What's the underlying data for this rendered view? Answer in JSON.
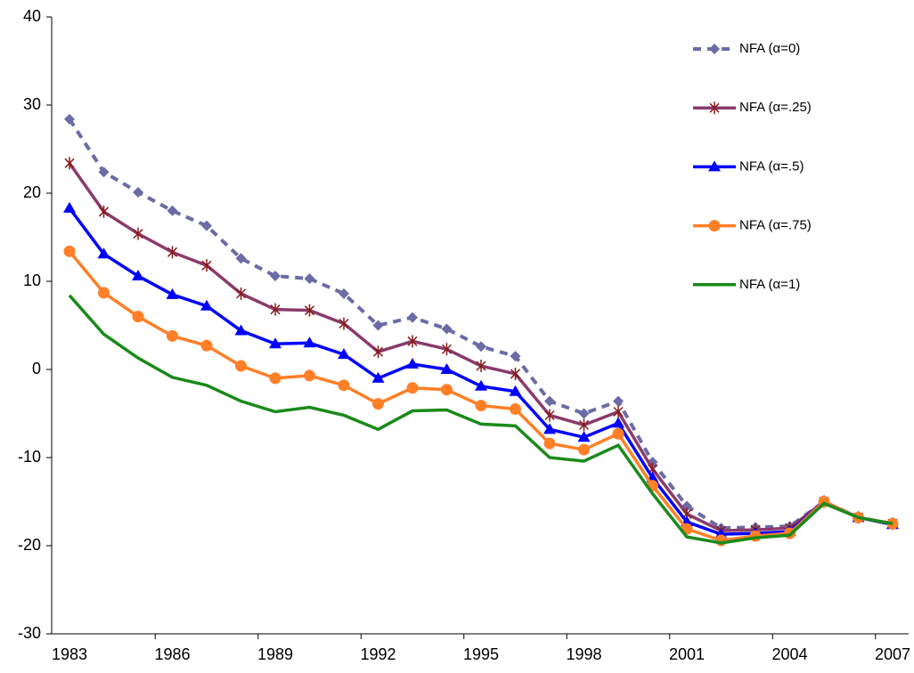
{
  "chart_data": {
    "type": "line",
    "categories": [
      "1983",
      null,
      null,
      "1986",
      null,
      null,
      "1989",
      null,
      null,
      "1992",
      null,
      null,
      "1995",
      null,
      null,
      "1998",
      null,
      null,
      "2001",
      null,
      null,
      "2004",
      null,
      null,
      "2007"
    ],
    "ylim": [
      -30,
      40
    ],
    "yticks": [
      -30,
      -20,
      -10,
      0,
      10,
      20,
      30,
      40
    ],
    "grid": false,
    "legend": "top-right",
    "series": [
      {
        "name": "NFA (α=0)",
        "color": "#6b6ba6",
        "dash": true,
        "marker": "diamond",
        "values": [
          28.4,
          22.4,
          20.1,
          18.0,
          16.3,
          12.6,
          10.6,
          10.3,
          8.6,
          5.0,
          5.9,
          4.6,
          2.6,
          1.5,
          -3.6,
          -5.0,
          -3.6,
          -10.5,
          -15.5,
          -18.0,
          -17.9,
          -17.8,
          -15.0,
          -16.8,
          -17.5
        ]
      },
      {
        "name": "NFA (α=.25)",
        "color": "#8b3a6b",
        "dash": false,
        "marker": "asterisk",
        "values": [
          23.4,
          17.9,
          15.4,
          13.3,
          11.8,
          8.6,
          6.8,
          6.7,
          5.2,
          2.0,
          3.2,
          2.3,
          0.4,
          -0.5,
          -5.2,
          -6.3,
          -4.8,
          -11.3,
          -16.4,
          -18.3,
          -18.2,
          -18.0,
          -15.0,
          -16.8,
          -17.5
        ]
      },
      {
        "name": "NFA (α=.5)",
        "color": "#0000ff",
        "dash": false,
        "marker": "triangle",
        "values": [
          18.3,
          13.1,
          10.6,
          8.5,
          7.2,
          4.4,
          2.9,
          3.0,
          1.7,
          -1.0,
          0.6,
          0.0,
          -1.9,
          -2.5,
          -6.8,
          -7.7,
          -6.1,
          -12.3,
          -17.3,
          -18.7,
          -18.6,
          -18.4,
          -15.0,
          -16.8,
          -17.6
        ]
      },
      {
        "name": "NFA (α=.75)",
        "color": "#ff7f27",
        "dash": false,
        "marker": "circle",
        "values": [
          13.4,
          8.7,
          6.0,
          3.8,
          2.7,
          0.4,
          -1.0,
          -0.7,
          -1.8,
          -3.9,
          -2.1,
          -2.3,
          -4.1,
          -4.5,
          -8.4,
          -9.1,
          -7.3,
          -13.2,
          -18.1,
          -19.4,
          -18.9,
          -18.6,
          -15.0,
          -16.8,
          -17.5
        ]
      },
      {
        "name": "NFA (α=1)",
        "color": "#1a8a1a",
        "dash": false,
        "marker": "none",
        "values": [
          8.4,
          4.0,
          1.3,
          -0.9,
          -1.8,
          -3.6,
          -4.8,
          -4.3,
          -5.2,
          -6.8,
          -4.7,
          -4.6,
          -6.2,
          -6.4,
          -10.0,
          -10.4,
          -8.6,
          -14.1,
          -19.0,
          -19.7,
          -19.1,
          -18.8,
          -15.2,
          -16.8,
          -17.5
        ]
      }
    ]
  }
}
